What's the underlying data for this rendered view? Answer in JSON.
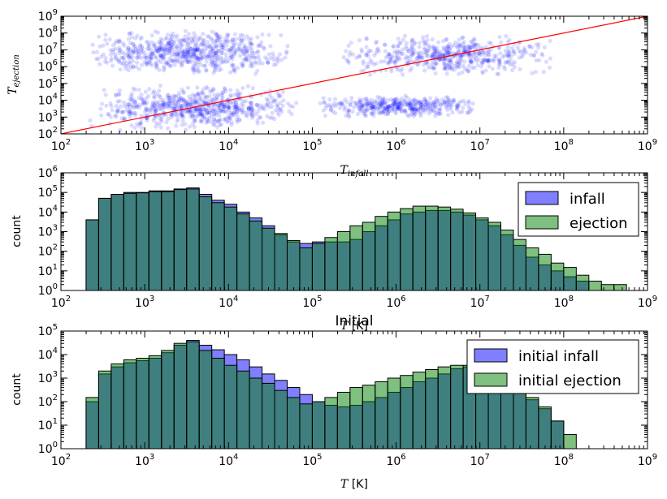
{
  "chart_data": [
    {
      "type": "scatter",
      "ylabel": "T_ejection",
      "xlabel": "T_infall",
      "x_scale": "log",
      "y_scale": "log",
      "xlim": [
        100,
        1000000000
      ],
      "ylim": [
        100,
        1000000000
      ],
      "x_ticks": [
        "10^2",
        "10^3",
        "10^4",
        "10^5",
        "10^6",
        "10^7",
        "10^8",
        "10^9"
      ],
      "y_ticks": [
        "10^2",
        "10^3",
        "10^4",
        "10^5",
        "10^6",
        "10^7",
        "10^8",
        "10^9"
      ],
      "point_color": "#0000ff",
      "reference_line": {
        "x": [
          100,
          1000000000
        ],
        "y": [
          100,
          1000000000
        ],
        "color": "#ff0000"
      },
      "clusters": [
        {
          "x_range": [
            200,
            60000
          ],
          "y_range": [
            300000,
            150000000
          ],
          "density": 1.0
        },
        {
          "x_range": [
            200,
            80000
          ],
          "y_range": [
            150,
            80000
          ],
          "density": 1.0
        },
        {
          "x_range": [
            200000,
            80000000
          ],
          "y_range": [
            300000,
            80000000
          ],
          "density": 0.8
        },
        {
          "x_range": [
            100000,
            10000000
          ],
          "y_range": [
            1000,
            20000
          ],
          "density": 0.6
        }
      ]
    },
    {
      "type": "histogram",
      "xlabel": "T [K]",
      "ylabel": "count",
      "x_scale": "log",
      "y_scale": "log",
      "xlim": [
        100,
        1000000000
      ],
      "ylim": [
        1,
        1000000
      ],
      "x_ticks": [
        "10^2",
        "10^3",
        "10^4",
        "10^5",
        "10^6",
        "10^7",
        "10^8",
        "10^9"
      ],
      "y_ticks": [
        "10^0",
        "10^1",
        "10^2",
        "10^3",
        "10^4",
        "10^5",
        "10^6"
      ],
      "bin_edges_log10": [
        2.0,
        2.3,
        2.45,
        2.6,
        2.75,
        2.9,
        3.05,
        3.2,
        3.35,
        3.5,
        3.65,
        3.8,
        3.95,
        4.1,
        4.25,
        4.4,
        4.55,
        4.7,
        4.85,
        5.0,
        5.15,
        5.3,
        5.45,
        5.6,
        5.75,
        5.9,
        6.05,
        6.2,
        6.35,
        6.5,
        6.65,
        6.8,
        6.95,
        7.1,
        7.25,
        7.4,
        7.55,
        7.7,
        7.85,
        8.0,
        8.15,
        8.3,
        8.45,
        8.6,
        8.75
      ],
      "series": [
        {
          "name": "infall",
          "color": "#0000ff",
          "values": [
            1,
            4000,
            50000,
            80000,
            100000,
            100000,
            120000,
            120000,
            150000,
            170000,
            80000,
            40000,
            25000,
            10000,
            5000,
            2000,
            700,
            300,
            250,
            300,
            300,
            300,
            400,
            1000,
            2000,
            4000,
            8000,
            10000,
            12000,
            12000,
            10000,
            7000,
            4000,
            2000,
            700,
            200,
            50,
            20,
            10,
            5,
            3,
            1,
            1,
            0
          ]
        },
        {
          "name": "ejection",
          "color": "#008000",
          "values": [
            1,
            4000,
            50000,
            80000,
            90000,
            95000,
            110000,
            110000,
            140000,
            150000,
            60000,
            30000,
            18000,
            8000,
            3500,
            1500,
            800,
            350,
            150,
            250,
            500,
            1000,
            2000,
            3000,
            6000,
            10000,
            15000,
            20000,
            20000,
            18000,
            14000,
            9000,
            5000,
            3000,
            1200,
            400,
            150,
            70,
            25,
            15,
            6,
            3,
            2,
            2
          ]
        }
      ]
    },
    {
      "type": "histogram",
      "title": "Initial",
      "xlabel": "T [K]",
      "ylabel": "count",
      "x_scale": "log",
      "y_scale": "log",
      "xlim": [
        100,
        1000000000
      ],
      "ylim": [
        1,
        100000
      ],
      "x_ticks": [
        "10^2",
        "10^3",
        "10^4",
        "10^5",
        "10^6",
        "10^7",
        "10^8",
        "10^9"
      ],
      "y_ticks": [
        "10^0",
        "10^1",
        "10^2",
        "10^3",
        "10^4",
        "10^5"
      ],
      "bin_edges_log10": [
        2.3,
        2.45,
        2.6,
        2.75,
        2.9,
        3.05,
        3.2,
        3.35,
        3.5,
        3.65,
        3.8,
        3.95,
        4.1,
        4.25,
        4.4,
        4.55,
        4.7,
        4.85,
        5.0,
        5.15,
        5.3,
        5.45,
        5.6,
        5.75,
        5.9,
        6.05,
        6.2,
        6.35,
        6.5,
        6.65,
        6.8,
        6.95,
        7.1,
        7.25,
        7.4,
        7.55,
        7.7,
        7.85,
        8.0,
        8.15
      ],
      "series": [
        {
          "name": "initial infall",
          "color": "#0000ff",
          "values": [
            100,
            1500,
            3000,
            4500,
            5500,
            7000,
            12000,
            25000,
            40000,
            25000,
            16000,
            10000,
            6000,
            3000,
            1500,
            800,
            400,
            200,
            100,
            70,
            60,
            70,
            100,
            150,
            250,
            400,
            700,
            1000,
            1500,
            2500,
            3000,
            2800,
            1500,
            600,
            250,
            120,
            50,
            15,
            0
          ]
        },
        {
          "name": "initial ejection",
          "color": "#008000",
          "values": [
            150,
            2000,
            4000,
            6000,
            7000,
            9000,
            15000,
            30000,
            35000,
            15000,
            7000,
            3500,
            2000,
            1000,
            600,
            300,
            150,
            80,
            100,
            150,
            250,
            400,
            500,
            700,
            1000,
            1300,
            1800,
            2300,
            3000,
            3500,
            3500,
            3000,
            1800,
            800,
            350,
            150,
            60,
            15,
            4
          ]
        }
      ]
    }
  ]
}
